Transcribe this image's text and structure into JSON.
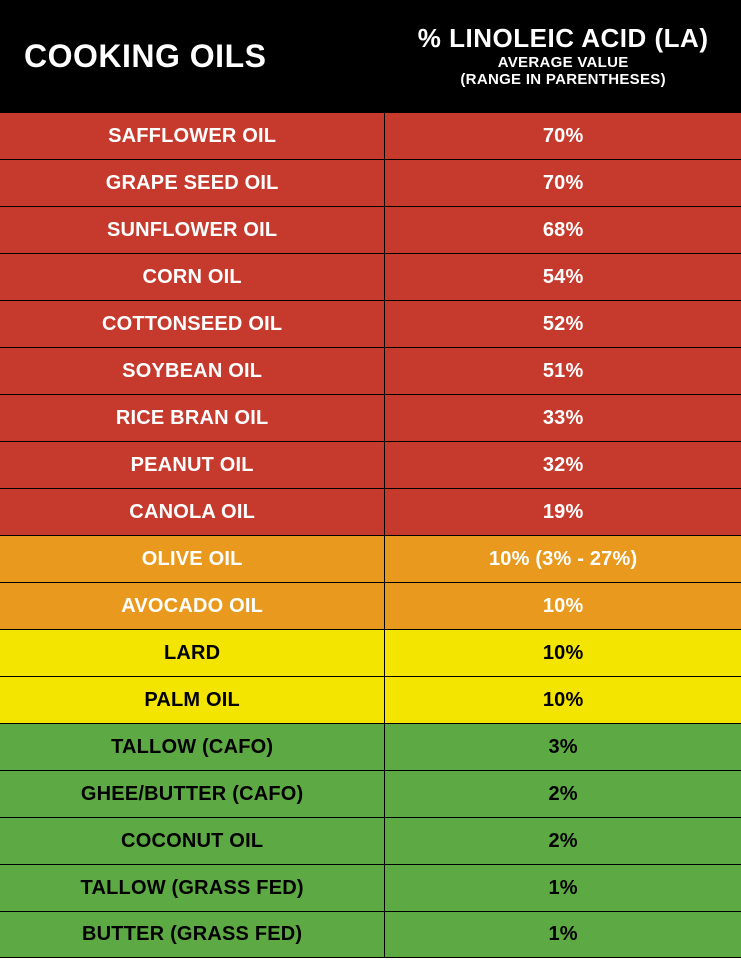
{
  "header": {
    "left_title": "COOKING OILS",
    "right_line1": "% LINOLEIC ACID (LA)",
    "right_line2": "AVERAGE VALUE",
    "right_line3": "(RANGE IN PARENTHESES)"
  },
  "colors": {
    "red": {
      "bg": "#c63a2d",
      "text": "#ffffff"
    },
    "orange": {
      "bg": "#e99a1e",
      "text": "#ffffff"
    },
    "yellow": {
      "bg": "#f4e500",
      "text": "#000000"
    },
    "green": {
      "bg": "#5da944",
      "text": "#000000"
    }
  },
  "rows": [
    {
      "name": "SAFFLOWER OIL",
      "value": "70%",
      "tier": "red"
    },
    {
      "name": "GRAPE SEED OIL",
      "value": "70%",
      "tier": "red"
    },
    {
      "name": "SUNFLOWER OIL",
      "value": "68%",
      "tier": "red"
    },
    {
      "name": "CORN OIL",
      "value": "54%",
      "tier": "red"
    },
    {
      "name": "COTTONSEED OIL",
      "value": "52%",
      "tier": "red"
    },
    {
      "name": "SOYBEAN OIL",
      "value": "51%",
      "tier": "red"
    },
    {
      "name": "RICE BRAN OIL",
      "value": "33%",
      "tier": "red"
    },
    {
      "name": "PEANUT OIL",
      "value": "32%",
      "tier": "red"
    },
    {
      "name": "CANOLA OIL",
      "value": "19%",
      "tier": "red"
    },
    {
      "name": "OLIVE OIL",
      "value": "10% (3% - 27%)",
      "tier": "orange"
    },
    {
      "name": "AVOCADO OIL",
      "value": "10%",
      "tier": "orange"
    },
    {
      "name": "LARD",
      "value": "10%",
      "tier": "yellow"
    },
    {
      "name": "PALM OIL",
      "value": "10%",
      "tier": "yellow"
    },
    {
      "name": "TALLOW (CAFO)",
      "value": "3%",
      "tier": "green"
    },
    {
      "name": "GHEE/BUTTER (CAFO)",
      "value": "2%",
      "tier": "green"
    },
    {
      "name": "COCONUT OIL",
      "value": "2%",
      "tier": "green"
    },
    {
      "name": "TALLOW (GRASS FED)",
      "value": "1%",
      "tier": "green"
    },
    {
      "name": "BUTTER (GRASS FED)",
      "value": "1%",
      "tier": "green"
    }
  ]
}
